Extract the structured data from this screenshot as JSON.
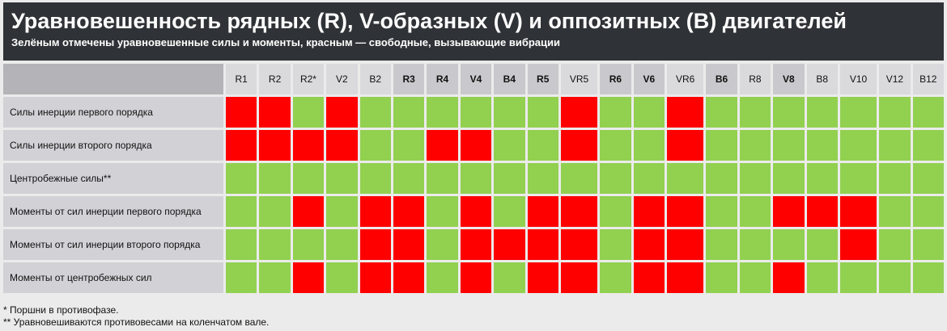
{
  "header": {
    "title": "Уравновешенность рядных (R), V-образных (V) и оппозитных (B) двигателей",
    "subtitle": "Зелёным отмечены уравновешенные силы и моменты, красным — свободные, вызывающие вибрации"
  },
  "table": {
    "columns": [
      {
        "label": "R1",
        "bold": false
      },
      {
        "label": "R2",
        "bold": false
      },
      {
        "label": "R2*",
        "bold": false
      },
      {
        "label": "V2",
        "bold": false
      },
      {
        "label": "B2",
        "bold": false
      },
      {
        "label": "R3",
        "bold": true
      },
      {
        "label": "R4",
        "bold": true
      },
      {
        "label": "V4",
        "bold": true
      },
      {
        "label": "B4",
        "bold": true
      },
      {
        "label": "R5",
        "bold": true
      },
      {
        "label": "VR5",
        "bold": false
      },
      {
        "label": "R6",
        "bold": true
      },
      {
        "label": "V6",
        "bold": true
      },
      {
        "label": "VR6",
        "bold": false
      },
      {
        "label": "B6",
        "bold": true
      },
      {
        "label": "R8",
        "bold": false
      },
      {
        "label": "V8",
        "bold": true
      },
      {
        "label": "B8",
        "bold": false
      },
      {
        "label": "V10",
        "bold": false
      },
      {
        "label": "V12",
        "bold": false
      },
      {
        "label": "B12",
        "bold": false
      }
    ],
    "rows": [
      {
        "label": "Силы инерции первого порядка",
        "cells": [
          "red",
          "red",
          "green",
          "red",
          "green",
          "green",
          "green",
          "green",
          "green",
          "green",
          "red",
          "green",
          "green",
          "red",
          "green",
          "green",
          "green",
          "green",
          "green",
          "green",
          "green"
        ]
      },
      {
        "label": "Силы инерции второго порядка",
        "cells": [
          "red",
          "red",
          "red",
          "red",
          "green",
          "green",
          "red",
          "red",
          "green",
          "green",
          "red",
          "green",
          "green",
          "red",
          "green",
          "green",
          "green",
          "green",
          "green",
          "green",
          "green"
        ]
      },
      {
        "label": "Центробежные силы**",
        "cells": [
          "green",
          "green",
          "green",
          "green",
          "green",
          "green",
          "green",
          "green",
          "green",
          "green",
          "green",
          "green",
          "green",
          "green",
          "green",
          "green",
          "green",
          "green",
          "green",
          "green",
          "green"
        ]
      },
      {
        "label": "Моменты от сил инерции первого порядка",
        "cells": [
          "green",
          "green",
          "red",
          "green",
          "red",
          "red",
          "green",
          "red",
          "green",
          "red",
          "red",
          "green",
          "red",
          "red",
          "green",
          "green",
          "red",
          "red",
          "red",
          "green",
          "green"
        ]
      },
      {
        "label": "Моменты от сил инерции второго порядка",
        "cells": [
          "green",
          "green",
          "green",
          "green",
          "red",
          "red",
          "green",
          "red",
          "red",
          "red",
          "red",
          "green",
          "red",
          "red",
          "green",
          "green",
          "green",
          "green",
          "red",
          "green",
          "green"
        ]
      },
      {
        "label": "Моменты от центробежных сил",
        "cells": [
          "green",
          "green",
          "red",
          "green",
          "red",
          "red",
          "green",
          "red",
          "green",
          "red",
          "red",
          "green",
          "red",
          "red",
          "green",
          "green",
          "red",
          "green",
          "green",
          "green",
          "green"
        ]
      }
    ]
  },
  "footnotes": [
    "* Поршни в противофазе.",
    "** Уравновешиваются противовесами на коленчатом вале."
  ]
}
